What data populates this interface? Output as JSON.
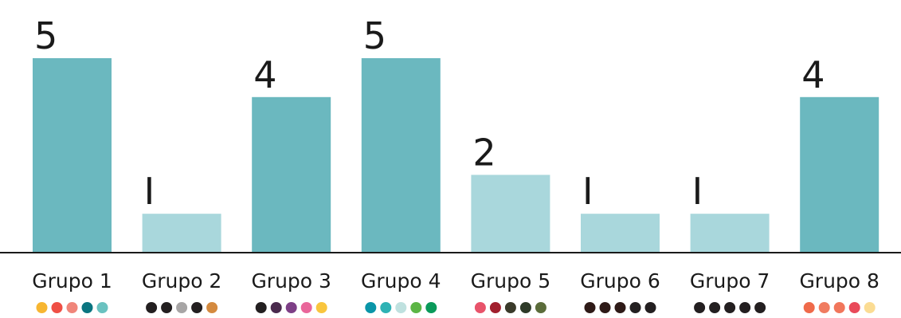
{
  "chart_data": {
    "type": "bar",
    "title": "",
    "xlabel": "",
    "ylabel": "",
    "ylim": [
      0,
      5
    ],
    "grid": false,
    "legend": "none",
    "categories": [
      "Grupo 1",
      "Grupo 2",
      "Grupo 3",
      "Grupo 4",
      "Grupo 5",
      "Grupo 6",
      "Grupo 7",
      "Grupo 8"
    ],
    "values": [
      5,
      1,
      4,
      5,
      2,
      1,
      1,
      4
    ],
    "data_labels": [
      "5",
      "I",
      "4",
      "5",
      "2",
      "I",
      "I",
      "4"
    ],
    "bar_colors": {
      "high": "#6bb8bf",
      "low": "#a9d7dc"
    },
    "palettes": [
      [
        "#f7b631",
        "#ef4f45",
        "#f0857a",
        "#0a7580",
        "#6ac2c0"
      ],
      [
        "#231f20",
        "#231f20",
        "#a7a5a5",
        "#231f20",
        "#d48a3f"
      ],
      [
        "#231f20",
        "#4a2a4d",
        "#7d3f86",
        "#e9669a",
        "#f9c53d"
      ],
      [
        "#0a95a8",
        "#2eb2b4",
        "#bfe1df",
        "#5cb545",
        "#0a9a5a"
      ],
      [
        "#e8536a",
        "#a11f2d",
        "#3a3a2a",
        "#2e3a28",
        "#5b6c3a"
      ],
      [
        "#2e1a17",
        "#2e1a17",
        "#2e1a17",
        "#231f20",
        "#231f20"
      ],
      [
        "#231f20",
        "#231f20",
        "#231f20",
        "#231f20",
        "#231f20"
      ],
      [
        "#ef6a4a",
        "#f07c60",
        "#f1765b",
        "#e94a5a",
        "#fbdc93"
      ]
    ]
  }
}
